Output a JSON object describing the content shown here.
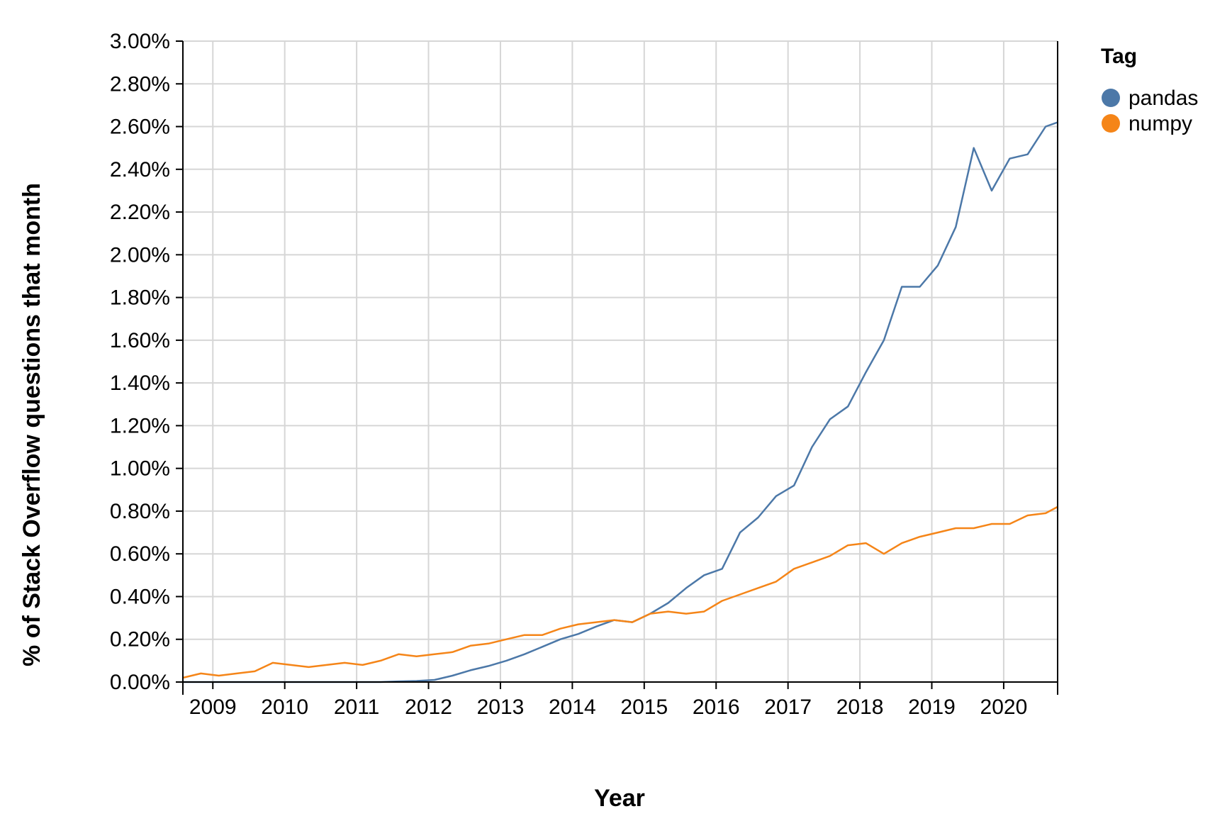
{
  "chart_data": {
    "type": "line",
    "xlabel": "Year",
    "ylabel": "% of Stack Overflow questions that month",
    "x_tick_labels": [
      "2009",
      "2010",
      "2011",
      "2012",
      "2013",
      "2014",
      "2015",
      "2016",
      "2017",
      "2018",
      "2019",
      "2020"
    ],
    "y_tick_labels": [
      "0.00%",
      "0.20%",
      "0.40%",
      "0.60%",
      "0.80%",
      "1.00%",
      "1.20%",
      "1.40%",
      "1.60%",
      "1.80%",
      "2.00%",
      "2.20%",
      "2.40%",
      "2.60%",
      "2.80%",
      "3.00%"
    ],
    "x_range": [
      "2008-08",
      "2020-10"
    ],
    "ylim": [
      0,
      3.0
    ],
    "grid": true,
    "legend_title": "Tag",
    "legend_position": "top-right",
    "x_dates": [
      "2008-08",
      "2008-11",
      "2009-02",
      "2009-05",
      "2009-08",
      "2009-11",
      "2010-02",
      "2010-05",
      "2010-08",
      "2010-11",
      "2011-02",
      "2011-05",
      "2011-08",
      "2011-11",
      "2012-02",
      "2012-05",
      "2012-08",
      "2012-11",
      "2013-02",
      "2013-05",
      "2013-08",
      "2013-11",
      "2014-02",
      "2014-05",
      "2014-08",
      "2014-11",
      "2015-02",
      "2015-05",
      "2015-08",
      "2015-11",
      "2016-02",
      "2016-05",
      "2016-08",
      "2016-11",
      "2017-02",
      "2017-05",
      "2017-08",
      "2017-11",
      "2018-02",
      "2018-05",
      "2018-08",
      "2018-11",
      "2019-02",
      "2019-05",
      "2019-08",
      "2019-11",
      "2020-02",
      "2020-05",
      "2020-08",
      "2020-10"
    ],
    "series": [
      {
        "name": "pandas",
        "color": "#4c78a8",
        "values": [
          0.0,
          0.0,
          0.0,
          0.0,
          0.0,
          0.0,
          0.0,
          0.0,
          0.0,
          0.0,
          0.0,
          0.0,
          0.003,
          0.005,
          0.01,
          0.03,
          0.055,
          0.075,
          0.1,
          0.13,
          0.165,
          0.2,
          0.225,
          0.26,
          0.29,
          0.28,
          0.32,
          0.37,
          0.44,
          0.5,
          0.53,
          0.7,
          0.77,
          0.87,
          0.92,
          1.1,
          1.23,
          1.29,
          1.45,
          1.6,
          1.85,
          1.85,
          1.95,
          2.13,
          2.5,
          2.3,
          2.45,
          2.47,
          2.6,
          2.62
        ]
      },
      {
        "name": "numpy",
        "color": "#f58518",
        "values": [
          0.02,
          0.04,
          0.03,
          0.04,
          0.05,
          0.09,
          0.08,
          0.07,
          0.08,
          0.09,
          0.08,
          0.1,
          0.13,
          0.12,
          0.13,
          0.14,
          0.17,
          0.18,
          0.2,
          0.22,
          0.22,
          0.25,
          0.27,
          0.28,
          0.29,
          0.28,
          0.32,
          0.33,
          0.32,
          0.33,
          0.38,
          0.41,
          0.44,
          0.47,
          0.53,
          0.56,
          0.59,
          0.64,
          0.65,
          0.6,
          0.65,
          0.68,
          0.7,
          0.72,
          0.72,
          0.74,
          0.74,
          0.78,
          0.79,
          0.82
        ]
      }
    ]
  }
}
